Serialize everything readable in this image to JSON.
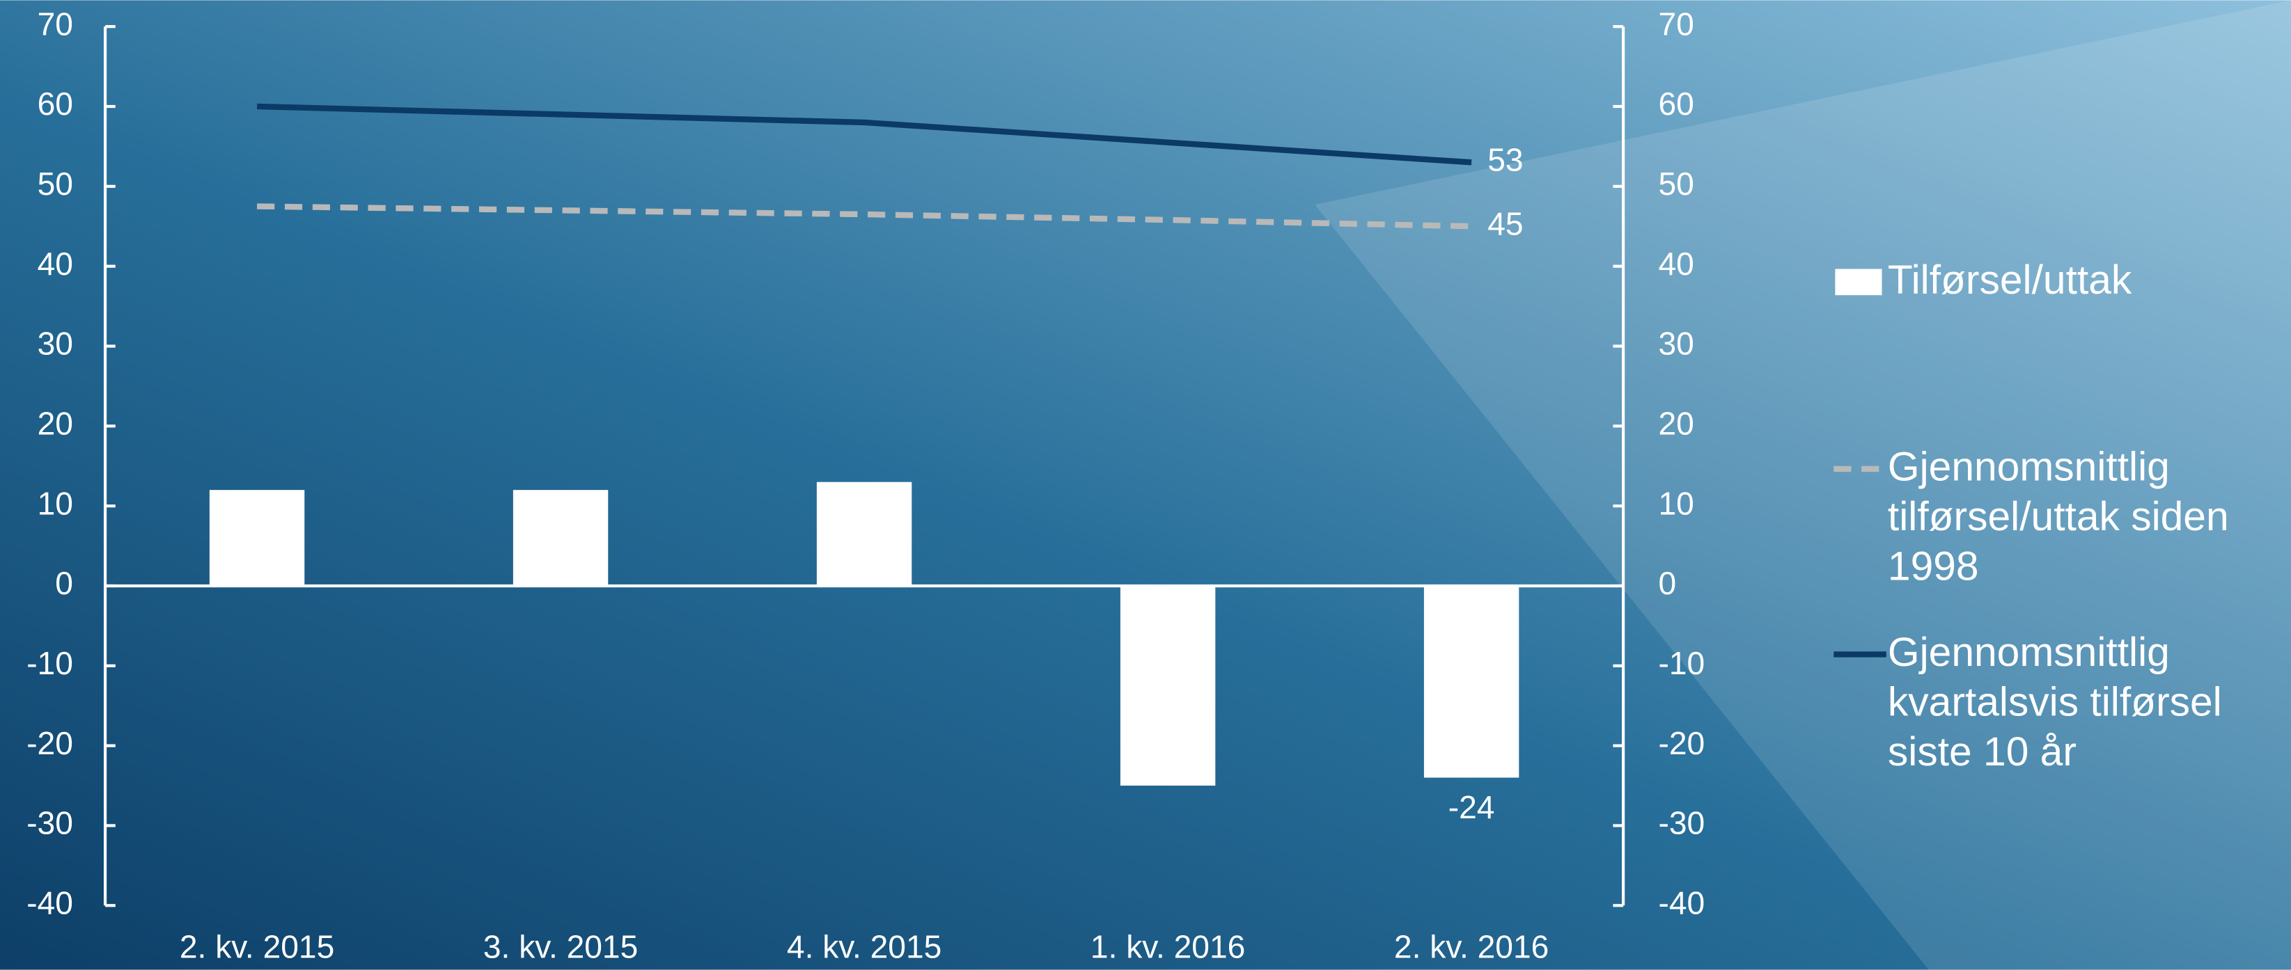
{
  "chart_data": {
    "type": "bar",
    "categories": [
      "2. kv. 2015",
      "3. kv. 2015",
      "4. kv. 2015",
      "1. kv. 2016",
      "2. kv. 2016"
    ],
    "series": [
      {
        "name": "Tilførsel/uttak",
        "type": "bar",
        "color": "#ffffff",
        "values": [
          12,
          12,
          13,
          -25,
          -24
        ]
      },
      {
        "name": "Gjennomsnittlig tilførsel/uttak siden 1998",
        "type": "line",
        "dashed": true,
        "axis": "y2",
        "color": "#b9b9b9",
        "values": [
          47.5,
          47,
          46.5,
          45.8,
          45
        ]
      },
      {
        "name": "Gjennomsnittlig kvartalsvis tilførsel siste 10 år",
        "type": "line",
        "axis": "y2",
        "color": "#0b3a66",
        "values": [
          60,
          59,
          58,
          55.5,
          53
        ]
      }
    ],
    "ylim": [
      -40,
      70
    ],
    "yticks": [
      -40,
      -30,
      -20,
      -10,
      0,
      10,
      20,
      30,
      40,
      50,
      60,
      70
    ],
    "y2lim": [
      -40,
      70
    ],
    "y2ticks": [
      -40,
      -30,
      -20,
      -10,
      0,
      10,
      20,
      30,
      40,
      50,
      60,
      70
    ],
    "grid": false,
    "legend": "right"
  }
}
